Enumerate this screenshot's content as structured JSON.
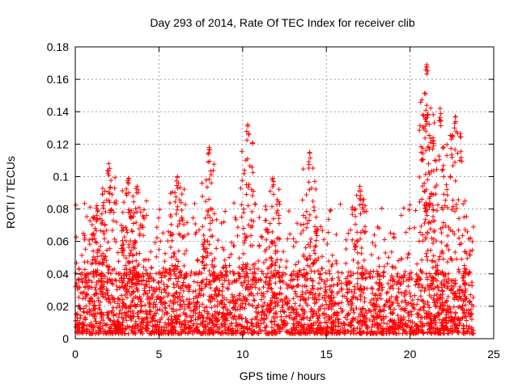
{
  "chart_data": {
    "type": "scatter",
    "title": "Day 293 of 2014, Rate Of TEC Index for receiver clib",
    "xlabel": "GPS time / hours",
    "ylabel": "ROTI / TECUs",
    "xlim": [
      0,
      25
    ],
    "ylim": [
      0,
      0.18
    ],
    "x_ticks": [
      0,
      5,
      10,
      15,
      20,
      25
    ],
    "x_tick_labels": [
      "0",
      "5",
      "10",
      "15",
      "20",
      "25"
    ],
    "y_ticks": [
      0,
      0.02,
      0.04,
      0.06,
      0.08,
      0.1,
      0.12,
      0.14,
      0.16,
      0.18
    ],
    "y_tick_labels": [
      "0",
      "0.02",
      "0.04",
      "0.06",
      "0.08",
      "0.1",
      "0.12",
      "0.14",
      "0.16",
      "0.18"
    ],
    "grid": true,
    "marker": "+",
    "marker_color": "#ff0000",
    "series": [
      {
        "name": "ROTI",
        "x_range": [
          0,
          23.8
        ],
        "typical_range": [
          0.003,
          0.04
        ],
        "notable_peaks": [
          {
            "x": 1.3,
            "y": 0.082
          },
          {
            "x": 2.0,
            "y": 0.108
          },
          {
            "x": 3.2,
            "y": 0.099
          },
          {
            "x": 3.7,
            "y": 0.094
          },
          {
            "x": 6.1,
            "y": 0.1
          },
          {
            "x": 8.0,
            "y": 0.118
          },
          {
            "x": 10.3,
            "y": 0.132
          },
          {
            "x": 11.8,
            "y": 0.099
          },
          {
            "x": 14.0,
            "y": 0.115
          },
          {
            "x": 17.0,
            "y": 0.094
          },
          {
            "x": 21.0,
            "y": 0.169
          },
          {
            "x": 21.0,
            "y": 0.144
          },
          {
            "x": 21.8,
            "y": 0.142
          },
          {
            "x": 22.7,
            "y": 0.137
          }
        ]
      }
    ]
  }
}
